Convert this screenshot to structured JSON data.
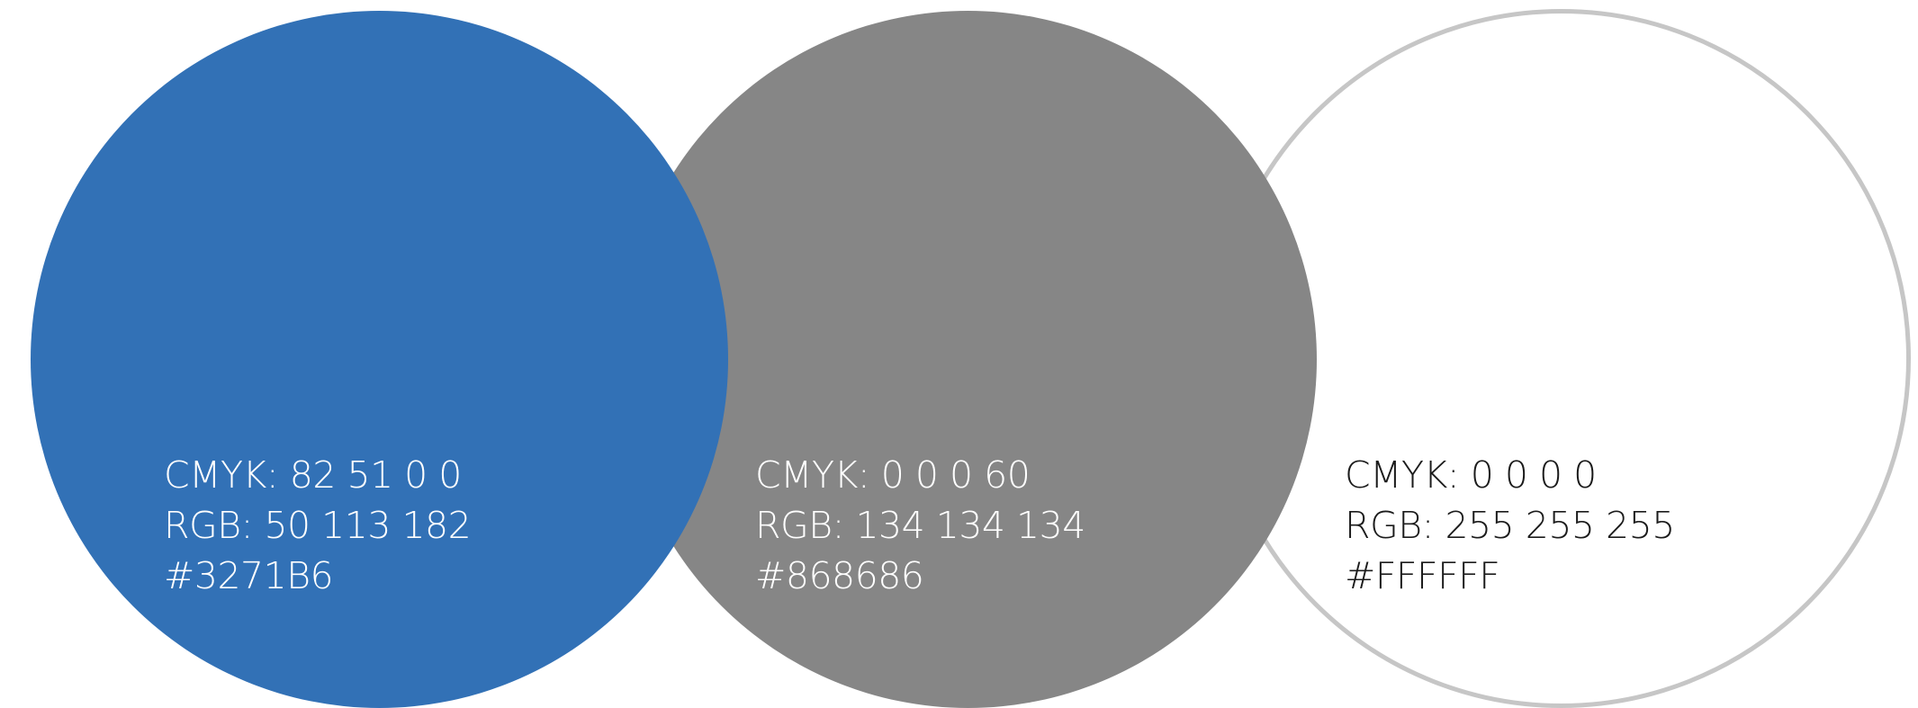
{
  "swatches": [
    {
      "id": "blue",
      "color": "#3271B6",
      "cmyk": "CMYK: 82 51 0 0",
      "rgb": "RGB: 50 113 182",
      "hex": "#3271B6"
    },
    {
      "id": "gray",
      "color": "#868686",
      "cmyk": "CMYK: 0 0 0 60",
      "rgb": "RGB: 134 134 134",
      "hex": "#868686"
    },
    {
      "id": "white",
      "color": "#FFFFFF",
      "outline_color": "#C6C6C6",
      "cmyk": "CMYK: 0 0 0 0",
      "rgb": "RGB: 255 255 255",
      "hex": "#FFFFFF"
    }
  ]
}
